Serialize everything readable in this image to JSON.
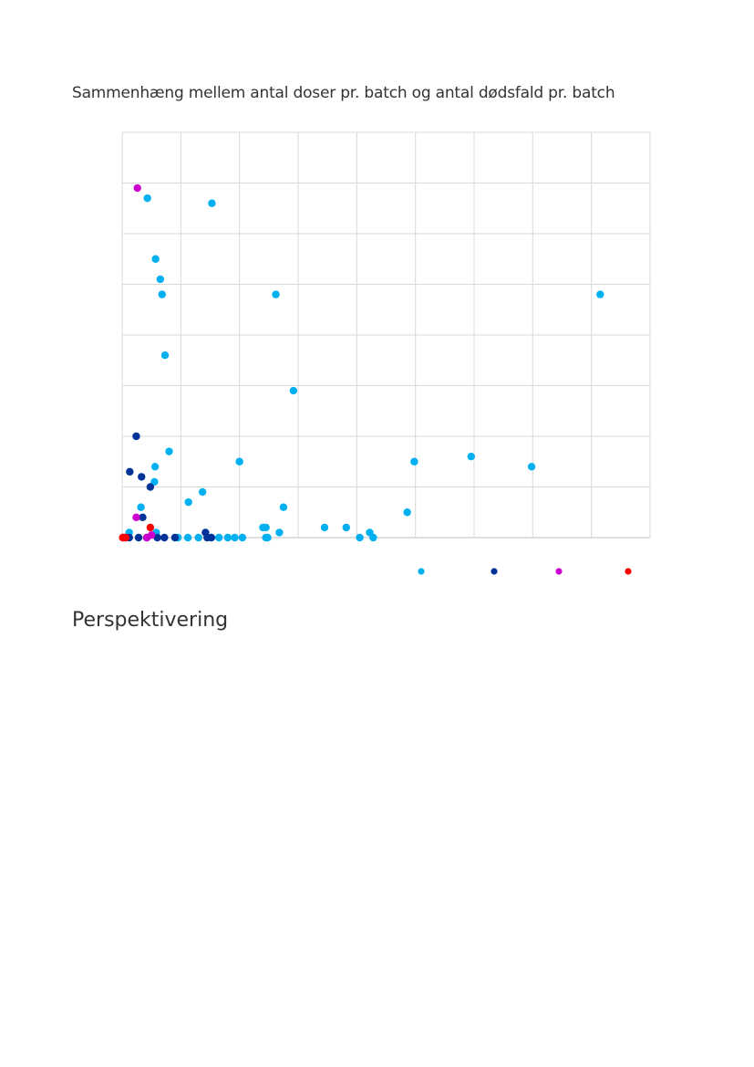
{
  "document": {
    "chart_title": "Sammenhæng mellem antal doser pr. batch og antal dødsfald pr. batch",
    "section_heading": "Perspektivering"
  },
  "chart_data": {
    "type": "scatter",
    "title": "Sammenhæng mellem antal doser pr. batch og antal dødsfald pr. batch",
    "xlabel": "",
    "ylabel": "",
    "xlim": [
      0,
      9
    ],
    "ylim": [
      0,
      8
    ],
    "x_grid_count": 9,
    "y_grid_count": 8,
    "grid": true,
    "legend": {
      "placement": "bottom-right",
      "entries_visible_text": false
    },
    "series": [
      {
        "color": "#00b0f0",
        "points": [
          [
            0.43,
            6.7
          ],
          [
            1.53,
            6.6
          ],
          [
            0.57,
            5.5
          ],
          [
            0.65,
            5.1
          ],
          [
            0.68,
            4.8
          ],
          [
            0.73,
            3.6
          ],
          [
            2.62,
            4.8
          ],
          [
            2.92,
            2.9
          ],
          [
            8.15,
            4.8
          ],
          [
            0.8,
            1.7
          ],
          [
            0.56,
            1.4
          ],
          [
            0.55,
            1.1
          ],
          [
            0.32,
            0.6
          ],
          [
            2.0,
            1.5
          ],
          [
            1.37,
            0.9
          ],
          [
            1.13,
            0.7
          ],
          [
            2.75,
            0.6
          ],
          [
            4.98,
            1.5
          ],
          [
            5.95,
            1.6
          ],
          [
            6.98,
            1.4
          ],
          [
            4.86,
            0.5
          ],
          [
            2.4,
            0.2
          ],
          [
            2.45,
            0.2
          ],
          [
            2.68,
            0.1
          ],
          [
            3.45,
            0.2
          ],
          [
            3.82,
            0.2
          ],
          [
            4.22,
            0.1
          ],
          [
            2.45,
            0.0
          ],
          [
            2.48,
            0.0
          ],
          [
            4.05,
            0.0
          ],
          [
            4.28,
            0.0
          ],
          [
            0.12,
            0.1
          ],
          [
            0.58,
            0.1
          ],
          [
            0.95,
            0.0
          ],
          [
            1.12,
            0.0
          ],
          [
            1.3,
            0.0
          ],
          [
            1.52,
            0.0
          ],
          [
            1.65,
            0.0
          ],
          [
            1.8,
            0.0
          ],
          [
            1.92,
            0.0
          ],
          [
            2.05,
            0.0
          ]
        ]
      },
      {
        "color": "#003399",
        "points": [
          [
            0.24,
            2.0
          ],
          [
            0.13,
            1.3
          ],
          [
            0.33,
            1.2
          ],
          [
            0.48,
            1.0
          ],
          [
            0.35,
            0.4
          ],
          [
            1.42,
            0.1
          ],
          [
            0.05,
            0.0
          ],
          [
            0.12,
            0.0
          ],
          [
            0.28,
            0.0
          ],
          [
            0.42,
            0.0
          ],
          [
            0.6,
            0.0
          ],
          [
            0.72,
            0.0
          ],
          [
            0.9,
            0.0
          ],
          [
            1.45,
            0.0
          ],
          [
            1.52,
            0.0
          ]
        ]
      },
      {
        "color": "#cc00cc",
        "points": [
          [
            0.26,
            6.9
          ],
          [
            0.24,
            0.4
          ],
          [
            0.5,
            0.05
          ],
          [
            0.42,
            0.0
          ],
          [
            0.02,
            0.0
          ]
        ]
      },
      {
        "color": "#ff0000",
        "points": [
          [
            0.48,
            0.2
          ],
          [
            0.01,
            0.0
          ],
          [
            0.06,
            0.0
          ]
        ]
      }
    ]
  }
}
